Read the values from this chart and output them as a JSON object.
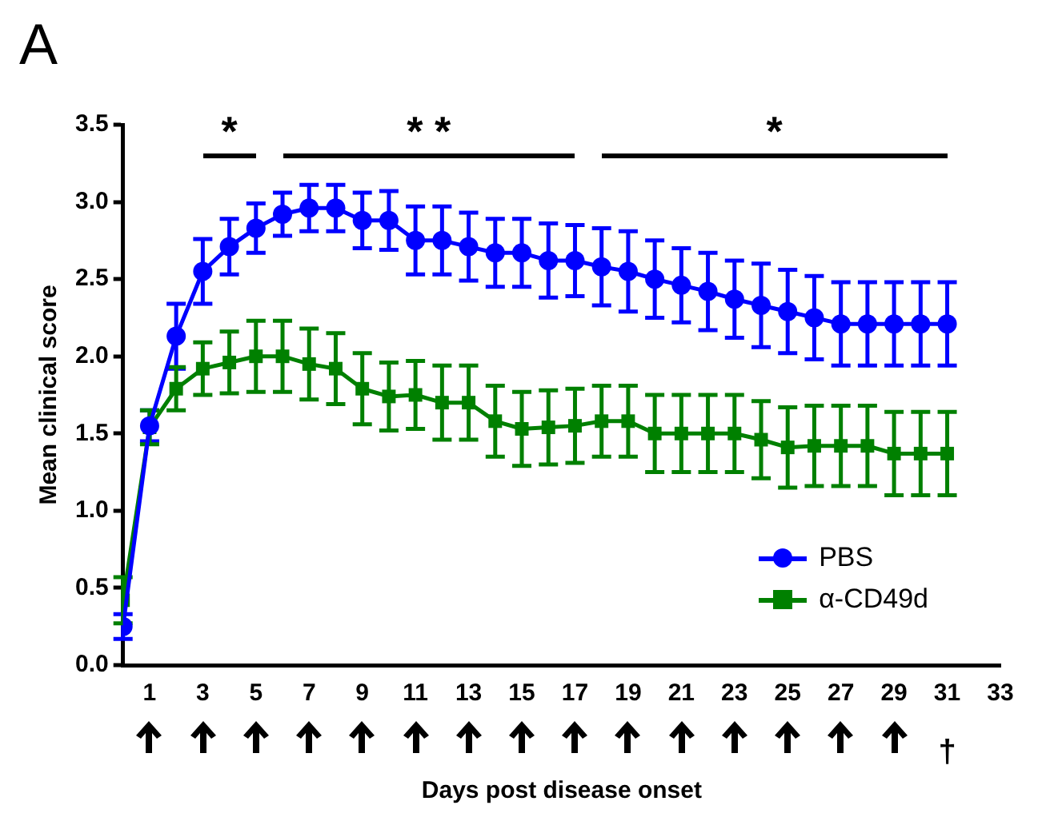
{
  "chart_data": {
    "type": "line",
    "xlabel": "Days post disease onset",
    "ylabel": "Mean clinical score",
    "annotations": [
      "A",
      "*",
      "* *",
      "*",
      "†"
    ],
    "x": [
      0,
      1,
      2,
      3,
      4,
      5,
      6,
      7,
      8,
      9,
      10,
      11,
      12,
      13,
      14,
      15,
      16,
      17,
      18,
      19,
      20,
      21,
      22,
      23,
      24,
      25,
      26,
      27,
      28,
      29,
      30,
      31
    ],
    "series": [
      {
        "name": "PBS",
        "color": "#0000ff",
        "marker": "circle",
        "values": [
          0.25,
          1.55,
          2.13,
          2.55,
          2.71,
          2.83,
          2.92,
          2.96,
          2.96,
          2.88,
          2.88,
          2.75,
          2.75,
          2.71,
          2.67,
          2.67,
          2.62,
          2.62,
          2.58,
          2.55,
          2.5,
          2.46,
          2.42,
          2.37,
          2.33,
          2.29,
          2.25,
          2.21,
          2.21,
          2.21,
          2.21,
          2.21
        ],
        "errors": [
          0.08,
          0.1,
          0.21,
          0.21,
          0.18,
          0.16,
          0.14,
          0.15,
          0.15,
          0.18,
          0.19,
          0.22,
          0.22,
          0.22,
          0.22,
          0.22,
          0.24,
          0.23,
          0.25,
          0.26,
          0.25,
          0.24,
          0.25,
          0.25,
          0.27,
          0.27,
          0.27,
          0.27,
          0.27,
          0.27,
          0.27,
          0.27
        ]
      },
      {
        "name": "α-CD49d",
        "color": "#008000",
        "marker": "square",
        "values": [
          0.42,
          1.54,
          1.79,
          1.92,
          1.96,
          2.0,
          2.0,
          1.95,
          1.92,
          1.79,
          1.74,
          1.75,
          1.7,
          1.7,
          1.58,
          1.53,
          1.54,
          1.55,
          1.58,
          1.58,
          1.5,
          1.5,
          1.5,
          1.5,
          1.46,
          1.41,
          1.42,
          1.42,
          1.42,
          1.37,
          1.37,
          1.37
        ],
        "errors": [
          0.15,
          0.11,
          0.14,
          0.17,
          0.2,
          0.23,
          0.23,
          0.23,
          0.23,
          0.23,
          0.22,
          0.22,
          0.24,
          0.24,
          0.23,
          0.24,
          0.24,
          0.24,
          0.23,
          0.23,
          0.25,
          0.25,
          0.25,
          0.25,
          0.25,
          0.26,
          0.26,
          0.26,
          0.26,
          0.27,
          0.27,
          0.27
        ]
      }
    ],
    "xlim": [
      0,
      33
    ],
    "xticks": [
      1,
      3,
      5,
      7,
      9,
      11,
      13,
      15,
      17,
      19,
      21,
      23,
      25,
      27,
      29,
      31,
      33
    ],
    "ylim": [
      0,
      3.5
    ],
    "yticks": [
      {
        "value": 0,
        "label": "0.0"
      },
      {
        "value": 0.5,
        "label": "0.5"
      },
      {
        "value": 1,
        "label": "1.0"
      },
      {
        "value": 1.5,
        "label": "1.5"
      },
      {
        "value": 2,
        "label": "2.0"
      },
      {
        "value": 2.5,
        "label": "2.5"
      },
      {
        "value": 3,
        "label": "3.0"
      },
      {
        "value": 3.5,
        "label": "3.5"
      }
    ],
    "grid": false,
    "legend": "bottom right",
    "line_style": "solid"
  }
}
